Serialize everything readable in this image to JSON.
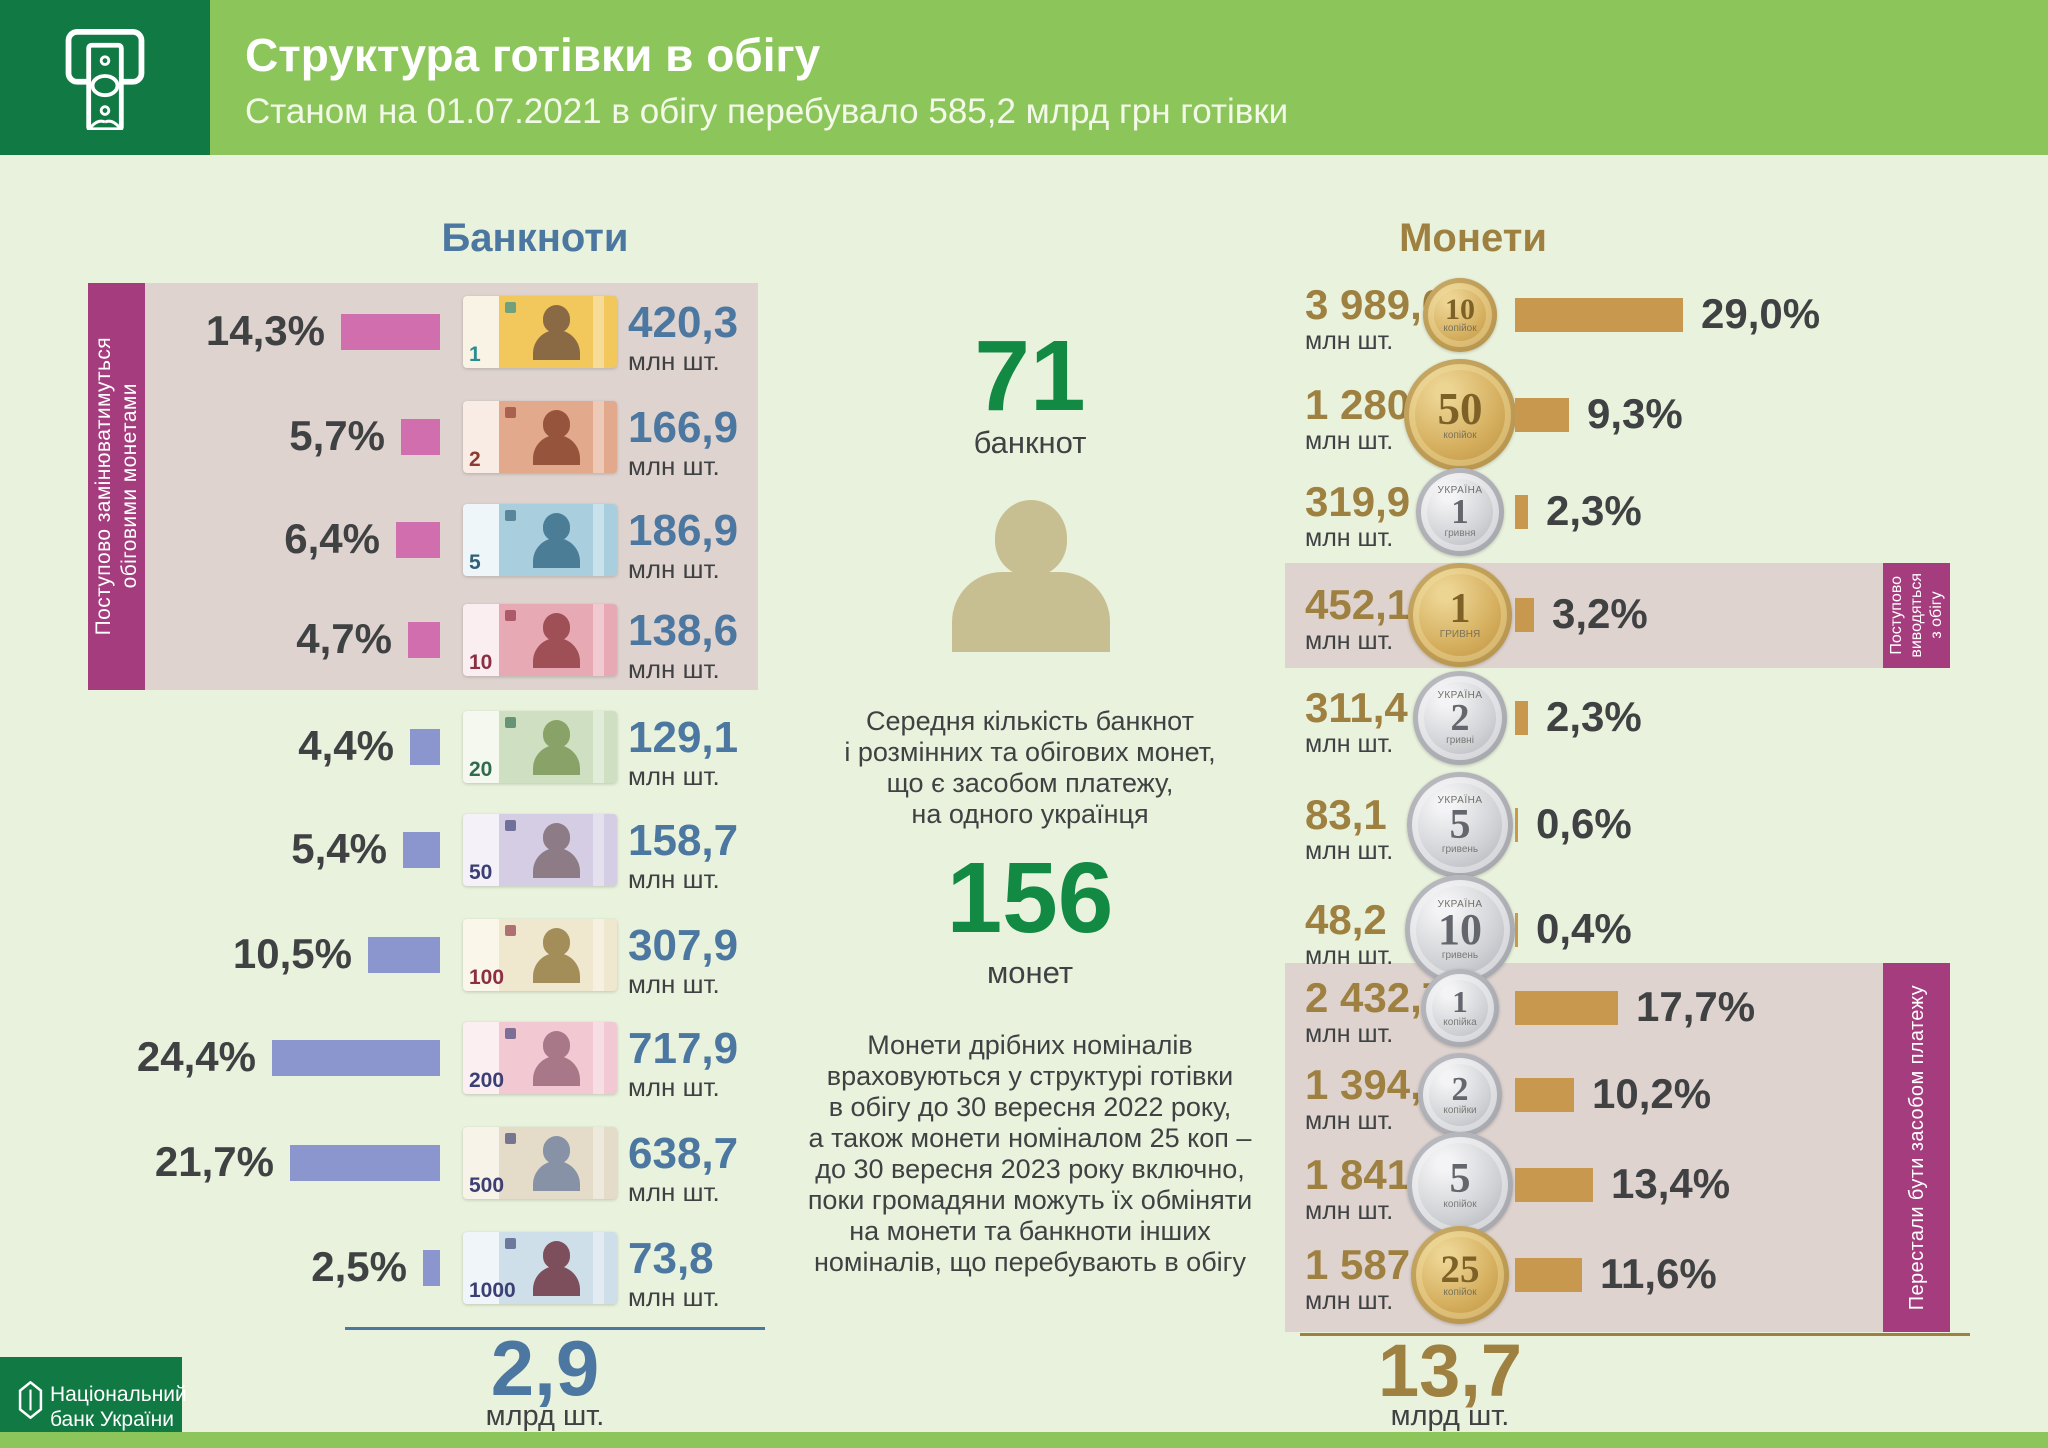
{
  "header": {
    "title": "Структура готівки в обігу",
    "subtitle": "Станом на 01.07.2021 в обігу перебувало 585,2 млрд грн готівки"
  },
  "banknotes": {
    "title": "Банкноти",
    "unit": "млн шт.",
    "side_label_lines": [
      "Поступово  замінюватимуться",
      "обіговими монетами"
    ],
    "rows": [
      {
        "denom": "1",
        "pct_label": "14,3%",
        "pct": 14.3,
        "count": "420,3",
        "group": "replace",
        "body": "#f2c75b",
        "strip": "#f8f3e4",
        "portrait": "#8a6a45",
        "accent": "#2a8e8f"
      },
      {
        "denom": "2",
        "pct_label": "5,7%",
        "pct": 5.7,
        "count": "166,9",
        "group": "replace",
        "body": "#e2a98c",
        "strip": "#f9ece4",
        "portrait": "#96543c",
        "accent": "#8d3b2f"
      },
      {
        "denom": "5",
        "pct_label": "6,4%",
        "pct": 6.4,
        "count": "186,9",
        "group": "replace",
        "body": "#a9cfdf",
        "strip": "#eef6f9",
        "portrait": "#4c7d97",
        "accent": "#2f6077"
      },
      {
        "denom": "10",
        "pct_label": "4,7%",
        "pct": 4.7,
        "count": "138,6",
        "group": "replace",
        "body": "#e7aab4",
        "strip": "#faeef0",
        "portrait": "#9e5056",
        "accent": "#8c2f42"
      },
      {
        "denom": "20",
        "pct_label": "4,4%",
        "pct": 4.4,
        "count": "129,1",
        "group": "normal",
        "body": "#cfe0c2",
        "strip": "#f4f8ef",
        "portrait": "#89a268",
        "accent": "#2f6b4f"
      },
      {
        "denom": "50",
        "pct_label": "5,4%",
        "pct": 5.4,
        "count": "158,7",
        "group": "normal",
        "body": "#d5cde4",
        "strip": "#f4f1f9",
        "portrait": "#8d7b85",
        "accent": "#3b3f73"
      },
      {
        "denom": "100",
        "pct_label": "10,5%",
        "pct": 10.5,
        "count": "307,9",
        "group": "normal",
        "body": "#f0e7cf",
        "strip": "#faf6ea",
        "portrait": "#a38d58",
        "accent": "#8c2f42"
      },
      {
        "denom": "200",
        "pct_label": "24,4%",
        "pct": 24.4,
        "count": "717,9",
        "group": "normal",
        "body": "#f2c9d3",
        "strip": "#fbeff2",
        "portrait": "#a97888",
        "accent": "#3b3f73"
      },
      {
        "denom": "500",
        "pct_label": "21,7%",
        "pct": 21.7,
        "count": "638,7",
        "group": "normal",
        "body": "#e4dcc9",
        "strip": "#f7f3e9",
        "portrait": "#8792a6",
        "accent": "#3b3f73"
      },
      {
        "denom": "1000",
        "pct_label": "2,5%",
        "pct": 2.5,
        "count": "73,8",
        "group": "normal",
        "body": "#cfdfe9",
        "strip": "#eff5f9",
        "portrait": "#7d4f5c",
        "accent": "#3b3f73"
      }
    ],
    "total_value": "2,9",
    "total_unit": "млрд шт."
  },
  "center": {
    "banknotes_count": "71",
    "banknotes_count_label": "банкнот",
    "avg_text_lines": [
      "Середня кількість банкнот",
      "і розмінних та обігових монет,",
      "що є засобом платежу,",
      "на одного українця"
    ],
    "coins_count": "156",
    "coins_count_label": "монет",
    "note_text_lines": [
      "Монети дрібних номіналів",
      "враховуються у структурі готівки",
      "в обігу до 30 вересня 2022 року,",
      "а також монети  номіналом 25 коп –",
      "до 30 вересня 2023 року включно,",
      "поки громадяни можуть їх обміняти",
      "на монети та банкноти інших",
      "номіналів, що перебувають в обігу"
    ]
  },
  "coins": {
    "title": "Монети",
    "unit": "млн шт.",
    "tag_withdraw_lines": [
      "Поступово",
      "виводяться",
      "з обігу"
    ],
    "tag_nolegal_lines": [
      "Перестали бути засобом  платежу"
    ],
    "rows": [
      {
        "denom": "10",
        "metal": "gold",
        "count": "3 989,0",
        "pct_label": "29,0%",
        "pct": 29.0,
        "d": 74,
        "top": "",
        "sub": "копійок",
        "group": "top"
      },
      {
        "denom": "50",
        "metal": "gold",
        "count": "1 280,4",
        "pct_label": "9,3%",
        "pct": 9.3,
        "d": 112,
        "top": "",
        "sub": "копійок",
        "group": "top"
      },
      {
        "denom": "1",
        "metal": "silver",
        "count": "319,9",
        "pct_label": "2,3%",
        "pct": 2.3,
        "d": 88,
        "top": "УКРАЇНА",
        "sub": "гривня",
        "group": "top"
      },
      {
        "denom": "1",
        "metal": "gold",
        "count": "452,1",
        "pct_label": "3,2%",
        "pct": 3.2,
        "d": 104,
        "top": "",
        "sub": "ГРИВНЯ",
        "group": "withdraw"
      },
      {
        "denom": "2",
        "metal": "silver",
        "count": "311,4",
        "pct_label": "2,3%",
        "pct": 2.3,
        "d": 94,
        "top": "УКРАЇНА",
        "sub": "гривні",
        "group": "top"
      },
      {
        "denom": "5",
        "metal": "silver",
        "count": "83,1",
        "pct_label": "0,6%",
        "pct": 0.6,
        "d": 106,
        "top": "УКРАЇНА",
        "sub": "гривень",
        "group": "top"
      },
      {
        "denom": "10",
        "metal": "silver",
        "count": "48,2",
        "pct_label": "0,4%",
        "pct": 0.4,
        "d": 110,
        "top": "УКРАЇНА",
        "sub": "гривень",
        "group": "top"
      },
      {
        "denom": "1",
        "metal": "silver",
        "count": "2 432,7",
        "pct_label": "17,7%",
        "pct": 17.7,
        "d": 78,
        "top": "",
        "sub": "копійка",
        "group": "nolegal"
      },
      {
        "denom": "2",
        "metal": "silver",
        "count": "1 394,0",
        "pct_label": "10,2%",
        "pct": 10.2,
        "d": 84,
        "top": "",
        "sub": "копійки",
        "group": "nolegal"
      },
      {
        "denom": "5",
        "metal": "silver",
        "count": "1 841,1",
        "pct_label": "13,4%",
        "pct": 13.4,
        "d": 106,
        "top": "",
        "sub": "копійок",
        "group": "nolegal"
      },
      {
        "denom": "25",
        "metal": "gold",
        "count": "1 587,5",
        "pct_label": "11,6%",
        "pct": 11.6,
        "d": 98,
        "top": "",
        "sub": "копійок",
        "group": "nolegal"
      }
    ],
    "total_value": "13,7",
    "total_unit": "млрд шт."
  },
  "footer": {
    "bank_lines": [
      "Національний",
      "банк України"
    ]
  },
  "colors": {
    "dark_green": "#117a44",
    "light_green": "#8cc65a",
    "background": "#e9f2dc",
    "panel_beige": "#ded3ce",
    "magenta": "#a53c7e",
    "bar_pink": "#d16fae",
    "bar_blue": "#8b96ce",
    "bar_tan": "#c8984e",
    "steel_blue": "#4b77a0",
    "gold_text": "#9e8040",
    "accent_green_number": "#128a43",
    "silhouette_khaki": "#c7bf92"
  },
  "chart_data": [
    {
      "type": "bar",
      "title": "Банкноти",
      "categories": [
        "1 грн",
        "2 грн",
        "5 грн",
        "10 грн",
        "20 грн",
        "50 грн",
        "100 грн",
        "200 грн",
        "500 грн",
        "1000 грн"
      ],
      "series": [
        {
          "name": "частка, %",
          "values": [
            14.3,
            5.7,
            6.4,
            4.7,
            4.4,
            5.4,
            10.5,
            24.4,
            21.7,
            2.5
          ]
        },
        {
          "name": "кількість, млн шт.",
          "values": [
            420.3,
            166.9,
            186.9,
            138.6,
            129.1,
            158.7,
            307.9,
            717.9,
            638.7,
            73.8
          ]
        }
      ],
      "total": {
        "value": 2.9,
        "unit": "млрд шт."
      },
      "annotations": [
        "1–10 грн: Поступово замінюватимуться обіговими монетами"
      ],
      "legend_position": "none",
      "grid": false
    },
    {
      "type": "bar",
      "title": "Монети",
      "categories": [
        "10 коп",
        "50 коп",
        "1 грн",
        "1 грн (стара)",
        "2 грн",
        "5 грн",
        "10 грн",
        "1 коп",
        "2 коп",
        "5 коп",
        "25 коп"
      ],
      "series": [
        {
          "name": "частка, %",
          "values": [
            29.0,
            9.3,
            2.3,
            3.2,
            2.3,
            0.6,
            0.4,
            17.7,
            10.2,
            13.4,
            11.6
          ]
        },
        {
          "name": "кількість, млн шт.",
          "values": [
            3989.0,
            1280.4,
            319.9,
            452.1,
            311.4,
            83.1,
            48.2,
            2432.7,
            1394.0,
            1841.1,
            1587.5
          ]
        }
      ],
      "total": {
        "value": 13.7,
        "unit": "млрд шт."
      },
      "annotations": [
        "1 грн (стара): Поступово виводяться з обігу",
        "1, 2, 5, 25 коп: Перестали бути засобом платежу"
      ],
      "legend_position": "none",
      "grid": false
    },
    {
      "type": "table",
      "title": "Середня кількість банкнот і розмінних та обігових монет, що є засобом платежу, на одного українця",
      "values": [
        {
          "label": "банкнот",
          "value": 71
        },
        {
          "label": "монет",
          "value": 156
        }
      ]
    }
  ]
}
